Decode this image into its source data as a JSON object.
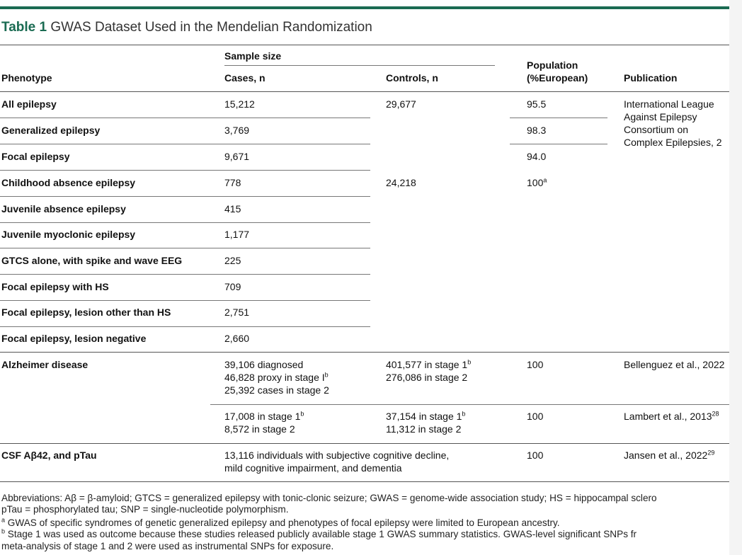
{
  "title": {
    "label": "Table 1",
    "text": "GWAS Dataset Used in the Mendelian Randomization"
  },
  "header": {
    "sample_size": "Sample size",
    "phenotype": "Phenotype",
    "cases": "Cases, n",
    "controls": "Controls, n",
    "population_line1": "Population",
    "population_line2": "(%European)",
    "publication": "Publication"
  },
  "rows": [
    {
      "phenotype": "All epilepsy",
      "cases": "15,212",
      "controls": "29,677",
      "population": "95.5"
    },
    {
      "phenotype": "Generalized epilepsy",
      "cases": "3,769",
      "population": "98.3"
    },
    {
      "phenotype": "Focal epilepsy",
      "cases": "9,671",
      "population": "94.0"
    },
    {
      "phenotype": "Childhood absence epilepsy",
      "cases": "778",
      "controls": "24,218",
      "population": "100",
      "population_sup": "a"
    },
    {
      "phenotype": "Juvenile absence epilepsy",
      "cases": "415"
    },
    {
      "phenotype": "Juvenile myoclonic epilepsy",
      "cases": "1,177"
    },
    {
      "phenotype": "GTCS alone, with spike and wave EEG",
      "cases": "225"
    },
    {
      "phenotype": "Focal epilepsy with HS",
      "cases": "709"
    },
    {
      "phenotype": "Focal epilepsy, lesion other than HS",
      "cases": "2,751"
    },
    {
      "phenotype": "Focal epilepsy, lesion negative",
      "cases": "2,660"
    }
  ],
  "epilepsy_publication": [
    "International League",
    "Against Epilepsy",
    "Consortium on",
    "Complex Epilepsies, 2"
  ],
  "alzheimer": {
    "phenotype": "Alzheimer disease",
    "block1": {
      "cases": [
        "39,106 diagnosed",
        "46,828 proxy in stage I",
        "25,392 cases in stage 2"
      ],
      "cases_sup": "b",
      "controls": [
        "401,577 in stage 1",
        "276,086 in stage 2"
      ],
      "controls_sup": "b",
      "population": "100",
      "publication": "Bellenguez et al., 2022"
    },
    "block2": {
      "cases": [
        "17,008 in stage 1",
        "8,572 in stage 2"
      ],
      "cases_sup": "b",
      "controls": [
        "37,154 in stage 1",
        "11,312 in stage 2"
      ],
      "controls_sup": "b",
      "population": "100",
      "publication": "Lambert et al., 2013",
      "publication_sup": "28"
    }
  },
  "csf": {
    "phenotype": "CSF Aβ42, and pTau",
    "cases": [
      "13,116 individuals with subjective cognitive decline,",
      "mild cognitive impairment, and dementia"
    ],
    "population": "100",
    "publication": "Jansen et al., 2022",
    "publication_sup": "29"
  },
  "footnotes": {
    "abbrev1": "Abbreviations: Aβ = β-amyloid; GTCS = generalized epilepsy with tonic-clonic seizure; GWAS = genome-wide association study; HS = hippocampal sclero",
    "abbrev2": "pTau = phosphorylated tau; SNP = single-nucleotide polymorphism.",
    "a_mark": "a",
    "a_text": " GWAS of specific syndromes of genetic generalized epilepsy and phenotypes of focal epilepsy were limited to European ancestry.",
    "b_mark": "b",
    "b_text": " Stage 1 was used as outcome because these studies released publicly available stage 1 GWAS summary statistics. GWAS-level significant SNPs fr",
    "b_cont": "meta-analysis of stage 1 and 2 were used as instrumental SNPs for exposure."
  }
}
